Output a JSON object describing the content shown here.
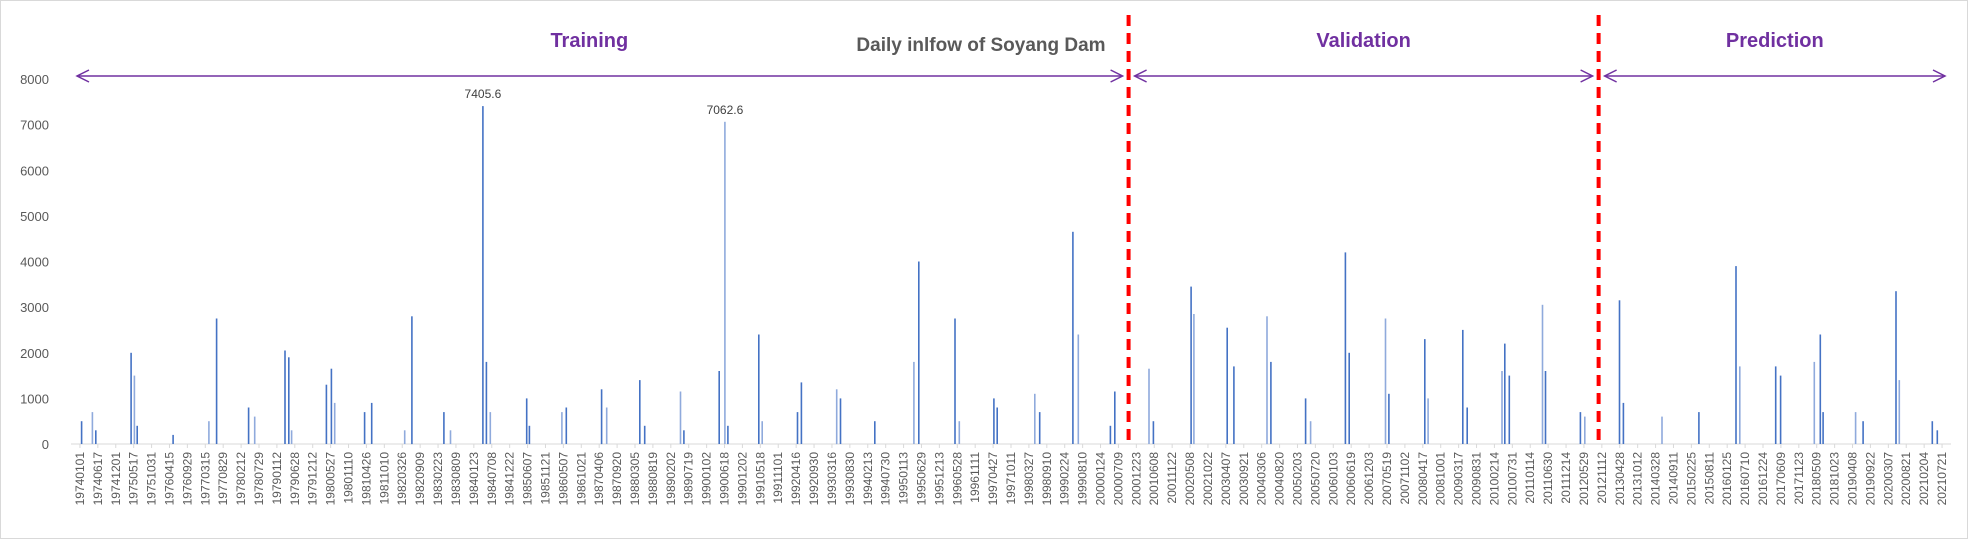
{
  "chart_data": {
    "type": "bar",
    "title": "Daily inlfow of Soyang Dam",
    "xlabel": "",
    "ylabel": "",
    "ylim": [
      0,
      8000
    ],
    "yticks": [
      "0",
      "1000",
      "2000",
      "3000",
      "4000",
      "5000",
      "6000",
      "7000",
      "8000"
    ],
    "x_range": [
      "1974-01-01",
      "2021-12-31"
    ],
    "grid": false,
    "colors": {
      "bar": "#4472c4",
      "bar_light": "#8faadc",
      "phase_arrow": "#7030a0",
      "phase_label": "#7030a0",
      "split_line": "#ff0000",
      "axis": "#d9d9d9",
      "tick_label": "#595959",
      "title": "#595959"
    },
    "xticks": [
      "19740101",
      "19740617",
      "19741201",
      "19750517",
      "19751031",
      "19760415",
      "19760929",
      "19770315",
      "19770829",
      "19780212",
      "19780729",
      "19790112",
      "19790628",
      "19791212",
      "19800527",
      "19801110",
      "19810426",
      "19811010",
      "19820326",
      "19820909",
      "19830223",
      "19830809",
      "19840123",
      "19840708",
      "19841222",
      "19850607",
      "19851121",
      "19860507",
      "19861021",
      "19870406",
      "19870920",
      "19880305",
      "19880819",
      "19890202",
      "19890719",
      "19900102",
      "19900618",
      "19901202",
      "19910518",
      "19911101",
      "19920416",
      "19920930",
      "19930316",
      "19930830",
      "19940213",
      "19940730",
      "19950113",
      "19950629",
      "19951213",
      "19960528",
      "19961111",
      "19970427",
      "19971011",
      "19980327",
      "19980910",
      "19990224",
      "19990810",
      "20000124",
      "20000709",
      "20001223",
      "20010608",
      "20011122",
      "20020508",
      "20021022",
      "20030407",
      "20030921",
      "20040306",
      "20040820",
      "20050203",
      "20050720",
      "20060103",
      "20060619",
      "20061203",
      "20070519",
      "20071102",
      "20080417",
      "20081001",
      "20090317",
      "20090831",
      "20100214",
      "20100731",
      "20110114",
      "20110630",
      "20111214",
      "20120529",
      "20121112",
      "20130428",
      "20131012",
      "20140328",
      "20140911",
      "20150225",
      "20150811",
      "20160125",
      "20160710",
      "20161224",
      "20170609",
      "20171123",
      "20180509",
      "20181023",
      "20190408",
      "20190922",
      "20200307",
      "20200821",
      "20210204",
      "20210721"
    ],
    "annotations": [
      {
        "label": "7405.6",
        "date": "1984-07-08",
        "value": 7405.6
      },
      {
        "label": "7062.6",
        "date": "1990-09-12",
        "value": 7062.6
      }
    ],
    "periods": [
      {
        "name": "Training",
        "start": "1974-01-01",
        "end": "2001-01-01"
      },
      {
        "name": "Validation",
        "start": "2001-01-01",
        "end": "2013-01-01"
      },
      {
        "name": "Prediction",
        "start": "2013-01-01",
        "end": "2021-12-31"
      }
    ],
    "split_lines": [
      "2001-01-01",
      "2013-01-01"
    ],
    "peaks": [
      {
        "date": "1974-04-10",
        "value": 500
      },
      {
        "date": "1974-07-20",
        "value": 700
      },
      {
        "date": "1974-08-20",
        "value": 300
      },
      {
        "date": "1975-07-15",
        "value": 2000
      },
      {
        "date": "1975-08-15",
        "value": 1500
      },
      {
        "date": "1975-09-10",
        "value": 400
      },
      {
        "date": "1976-08-10",
        "value": 200
      },
      {
        "date": "1977-07-10",
        "value": 500
      },
      {
        "date": "1977-09-20",
        "value": 2750
      },
      {
        "date": "1978-07-15",
        "value": 800
      },
      {
        "date": "1978-09-10",
        "value": 600
      },
      {
        "date": "1979-06-20",
        "value": 2050
      },
      {
        "date": "1979-07-25",
        "value": 1900
      },
      {
        "date": "1979-08-20",
        "value": 300
      },
      {
        "date": "1980-07-10",
        "value": 1300
      },
      {
        "date": "1980-08-25",
        "value": 1650
      },
      {
        "date": "1980-09-25",
        "value": 900
      },
      {
        "date": "1981-07-01",
        "value": 700
      },
      {
        "date": "1981-09-05",
        "value": 900
      },
      {
        "date": "1982-07-10",
        "value": 300
      },
      {
        "date": "1982-09-15",
        "value": 2800
      },
      {
        "date": "1983-07-10",
        "value": 700
      },
      {
        "date": "1983-09-10",
        "value": 300
      },
      {
        "date": "1984-07-08",
        "value": 7405.6
      },
      {
        "date": "1984-08-10",
        "value": 1800
      },
      {
        "date": "1984-09-15",
        "value": 700
      },
      {
        "date": "1985-08-20",
        "value": 1000
      },
      {
        "date": "1985-09-15",
        "value": 400
      },
      {
        "date": "1986-07-15",
        "value": 700
      },
      {
        "date": "1986-08-25",
        "value": 800
      },
      {
        "date": "1987-07-20",
        "value": 1200
      },
      {
        "date": "1987-09-05",
        "value": 800
      },
      {
        "date": "1988-07-10",
        "value": 1400
      },
      {
        "date": "1988-08-25",
        "value": 400
      },
      {
        "date": "1989-07-25",
        "value": 1150
      },
      {
        "date": "1989-08-25",
        "value": 300
      },
      {
        "date": "1990-07-20",
        "value": 1600
      },
      {
        "date": "1990-09-12",
        "value": 7062.6
      },
      {
        "date": "1990-10-10",
        "value": 400
      },
      {
        "date": "1991-07-25",
        "value": 2400
      },
      {
        "date": "1991-08-25",
        "value": 500
      },
      {
        "date": "1992-07-20",
        "value": 700
      },
      {
        "date": "1992-08-25",
        "value": 1350
      },
      {
        "date": "1993-07-20",
        "value": 1200
      },
      {
        "date": "1993-08-25",
        "value": 1000
      },
      {
        "date": "1994-07-10",
        "value": 500
      },
      {
        "date": "1995-07-10",
        "value": 1800
      },
      {
        "date": "1995-08-25",
        "value": 4000
      },
      {
        "date": "1996-07-27",
        "value": 2750
      },
      {
        "date": "1996-09-05",
        "value": 500
      },
      {
        "date": "1997-07-25",
        "value": 1000
      },
      {
        "date": "1997-08-25",
        "value": 800
      },
      {
        "date": "1998-08-10",
        "value": 1100
      },
      {
        "date": "1998-09-25",
        "value": 700
      },
      {
        "date": "1999-08-01",
        "value": 4650
      },
      {
        "date": "1999-09-20",
        "value": 2400
      },
      {
        "date": "2000-07-15",
        "value": 400
      },
      {
        "date": "2000-08-25",
        "value": 1150
      },
      {
        "date": "2001-07-10",
        "value": 1650
      },
      {
        "date": "2001-08-20",
        "value": 500
      },
      {
        "date": "2002-08-07",
        "value": 3450
      },
      {
        "date": "2002-09-02",
        "value": 2850
      },
      {
        "date": "2003-07-10",
        "value": 2550
      },
      {
        "date": "2003-09-10",
        "value": 1700
      },
      {
        "date": "2004-07-15",
        "value": 2800
      },
      {
        "date": "2004-08-20",
        "value": 1800
      },
      {
        "date": "2005-07-10",
        "value": 1000
      },
      {
        "date": "2005-08-25",
        "value": 500
      },
      {
        "date": "2006-07-16",
        "value": 4200
      },
      {
        "date": "2006-08-20",
        "value": 2000
      },
      {
        "date": "2007-07-25",
        "value": 2750
      },
      {
        "date": "2007-08-25",
        "value": 1100
      },
      {
        "date": "2008-07-25",
        "value": 2300
      },
      {
        "date": "2008-08-25",
        "value": 1000
      },
      {
        "date": "2009-07-15",
        "value": 2500
      },
      {
        "date": "2009-08-25",
        "value": 800
      },
      {
        "date": "2010-07-15",
        "value": 1600
      },
      {
        "date": "2010-08-10",
        "value": 2200
      },
      {
        "date": "2010-09-21",
        "value": 1500
      },
      {
        "date": "2011-07-28",
        "value": 3050
      },
      {
        "date": "2011-08-25",
        "value": 1600
      },
      {
        "date": "2012-07-15",
        "value": 700
      },
      {
        "date": "2012-08-25",
        "value": 600
      },
      {
        "date": "2013-07-15",
        "value": 3150
      },
      {
        "date": "2013-08-20",
        "value": 900
      },
      {
        "date": "2014-08-15",
        "value": 600
      },
      {
        "date": "2015-07-25",
        "value": 700
      },
      {
        "date": "2016-07-05",
        "value": 3900
      },
      {
        "date": "2016-08-10",
        "value": 1700
      },
      {
        "date": "2017-07-10",
        "value": 1700
      },
      {
        "date": "2017-08-25",
        "value": 1500
      },
      {
        "date": "2018-07-05",
        "value": 1800
      },
      {
        "date": "2018-08-30",
        "value": 2400
      },
      {
        "date": "2018-09-25",
        "value": 700
      },
      {
        "date": "2019-07-25",
        "value": 700
      },
      {
        "date": "2019-10-03",
        "value": 500
      },
      {
        "date": "2020-08-05",
        "value": 3350
      },
      {
        "date": "2020-09-05",
        "value": 1400
      },
      {
        "date": "2021-07-10",
        "value": 500
      },
      {
        "date": "2021-08-25",
        "value": 300
      }
    ]
  }
}
